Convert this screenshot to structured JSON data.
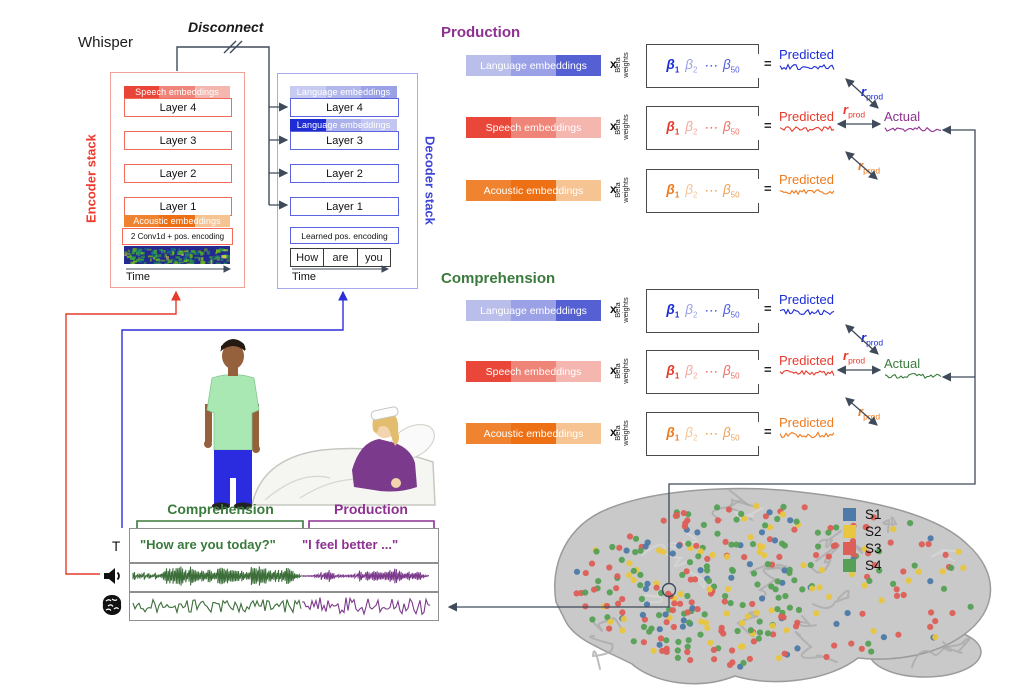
{
  "whisper_label": "Whisper",
  "disconnect_label": "Disconnect",
  "encoder": {
    "title": "Encoder stack",
    "accent": "#ee3a2c",
    "border": "#f2a197",
    "layer_border": "#f26b5b",
    "speech_bar": "Speech embeddings",
    "speech_bar_colors": [
      "#e84537",
      "#ef857a",
      "#f4b7b0"
    ],
    "layers": [
      "Layer 4",
      "Layer 3",
      "Layer 2",
      "Layer 1"
    ],
    "acoustic_bar": "Acoustic embeddings",
    "acoustic_bar_colors": [
      "#f0832f",
      "#ee7015",
      "#f6c392"
    ],
    "conv_label": "2 Conv1d + pos. encoding",
    "time_label": "Time",
    "spectrogram_colors": [
      "#232a8f",
      "#2f9e44",
      "#74b816",
      "#0b7285",
      "#e8d44d"
    ]
  },
  "decoder": {
    "title": "Decoder stack",
    "accent": "#3c45d6",
    "border": "#a6abef",
    "layer_border": "#5a64e0",
    "lang_bar_top": "Language embeddings",
    "lang_bar_top_colors": [
      "#c7caf1",
      "#b3b8ec",
      "#9aa1e7"
    ],
    "lang_bar_mid": "Language embeddings",
    "lang_bar_mid_colors": [
      "#1f2cd4",
      "#abb1ea",
      "#c3c6f0"
    ],
    "layers": [
      "Layer 4",
      "Layer 3",
      "Layer 2",
      "Layer 1"
    ],
    "pos_label": "Learned pos. encoding",
    "tokens": [
      "How",
      "are",
      "you"
    ],
    "time_label": "Time"
  },
  "symbols": {
    "times": "x",
    "equals": "=",
    "beta_label": "Beta weights",
    "predicted": "Predicted",
    "actual": "Actual"
  },
  "betas": [
    {
      "base": "β",
      "sub": "1"
    },
    {
      "base": "β",
      "sub": "2"
    },
    {
      "base": "⋯",
      "sub": ""
    },
    {
      "base": "β",
      "sub": "50"
    }
  ],
  "r_metric": {
    "base": "r",
    "sub": "prod"
  },
  "production": {
    "title": "Production",
    "title_color": "#8d3190",
    "actual_color": "#8d3190",
    "rows": [
      {
        "label": "Language embeddings",
        "bar_colors": [
          "#babeeb",
          "#9ba1e6",
          "#5560d2"
        ],
        "strong": "#1b2bd8",
        "light": "#98a1ea",
        "mid": "#4d5ae2"
      },
      {
        "label": "Speech embeddings",
        "bar_colors": [
          "#e8473a",
          "#ef8478",
          "#f4b6af"
        ],
        "strong": "#e8392b",
        "light": "#f4a8a1",
        "mid": "#ef7064"
      },
      {
        "label": "Acoustic embeddings",
        "bar_colors": [
          "#f0832f",
          "#ee7015",
          "#f6c392"
        ],
        "strong": "#ee7b1e",
        "light": "#f7c596",
        "mid": "#f2a053"
      }
    ]
  },
  "comprehension": {
    "title": "Comprehension",
    "title_color": "#3a7a3c",
    "actual_color": "#3a7a3c",
    "rows": [
      {
        "label": "Language embeddings",
        "bar_colors": [
          "#babeeb",
          "#9ba1e6",
          "#5560d2"
        ],
        "strong": "#1b2bd8",
        "light": "#98a1ea",
        "mid": "#4d5ae2"
      },
      {
        "label": "Speech embeddings",
        "bar_colors": [
          "#e8473a",
          "#ef8478",
          "#f4b6af"
        ],
        "strong": "#e8392b",
        "light": "#f4a8a1",
        "mid": "#ef7064"
      },
      {
        "label": "Acoustic embeddings",
        "bar_colors": [
          "#f0832f",
          "#ee7015",
          "#f6c392"
        ],
        "strong": "#ee7b1e",
        "light": "#f7c596",
        "mid": "#f2a053"
      }
    ]
  },
  "timeline": {
    "comprehension_label": "Comprehension",
    "comprehension_color": "#3a7a3c",
    "production_label": "Production",
    "production_color": "#8d3190",
    "t_label": "T",
    "transcript_comprehension": "\"How are you today?\"",
    "transcript_production": "\"I feel better ...\"",
    "audio_green": "#3c6e3a",
    "audio_purple": "#7c3a8c"
  },
  "brain": {
    "fill": "#c9c9c9",
    "outline": "#9b9b9b"
  },
  "legend": {
    "items": [
      {
        "label": "S1",
        "color": "#4d7aa9"
      },
      {
        "label": "S2",
        "color": "#e9c63f"
      },
      {
        "label": "S3",
        "color": "#dd5f57"
      },
      {
        "label": "S4",
        "color": "#55a054"
      }
    ]
  }
}
